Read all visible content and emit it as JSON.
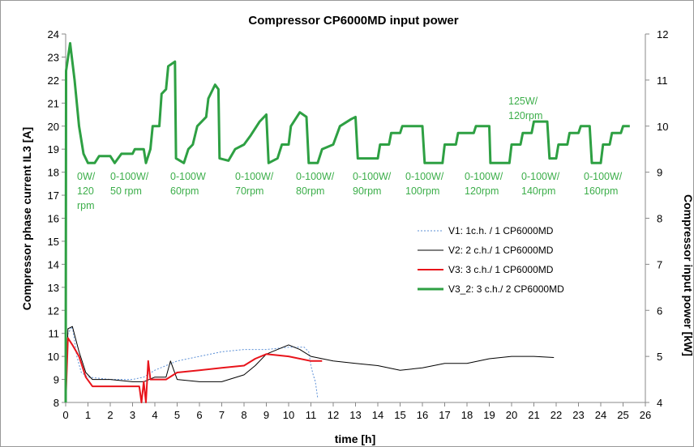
{
  "chart_data": {
    "type": "line",
    "title": "Compressor  CP6000MD input power",
    "xlabel": "time [h]",
    "ylabel": "Compressor phase current IL3 [A]",
    "y2label": "Compressor input power [kW]",
    "xlim": [
      0,
      26
    ],
    "xticks": [
      0,
      1,
      2,
      3,
      4,
      5,
      6,
      7,
      8,
      9,
      10,
      11,
      12,
      13,
      14,
      15,
      16,
      17,
      18,
      19,
      20,
      21,
      22,
      23,
      24,
      25,
      26
    ],
    "ylim": [
      8,
      24
    ],
    "yticks": [
      8,
      9,
      10,
      11,
      12,
      13,
      14,
      15,
      16,
      17,
      18,
      19,
      20,
      21,
      22,
      23,
      24
    ],
    "y2lim": [
      4,
      12
    ],
    "y2ticks": [
      4,
      5,
      6,
      7,
      8,
      9,
      10,
      11,
      12
    ],
    "grid": false,
    "legend": "right",
    "annotations": [
      [
        "0W/",
        "120",
        "rpm"
      ],
      [
        "0-100W/",
        "50 rpm"
      ],
      [
        "0-100W",
        "60rpm"
      ],
      [
        "0-100W/",
        "70rpm"
      ],
      [
        "0-100W/",
        "80rpm"
      ],
      [
        "0-100W/",
        "90rpm"
      ],
      [
        "0-100W/",
        "100rpm"
      ],
      [
        "0-100W/",
        "120rpm"
      ],
      [
        "0-100W/",
        "140rpm"
      ],
      [
        "0-100W/",
        "160rpm"
      ],
      [
        "125W/",
        "120rpm"
      ]
    ],
    "series": [
      {
        "name": "V1: 1c.h. / 1 CP6000MD",
        "color": "#5b8fd6",
        "dash": true,
        "width": 1,
        "x": [
          0,
          0.1,
          0.3,
          0.5,
          0.7,
          1,
          2,
          3,
          3.5,
          4,
          5,
          6,
          7,
          8,
          9,
          10,
          10.7,
          10.9,
          11,
          11.1,
          11.2,
          11.3
        ],
        "values": [
          8,
          11,
          11.3,
          10,
          9.3,
          9.1,
          9.0,
          9.0,
          9.1,
          9.4,
          9.8,
          10.0,
          10.2,
          10.3,
          10.3,
          10.4,
          10.4,
          10.2,
          9.6,
          9.2,
          8.9,
          8.2
        ]
      },
      {
        "name": "V2: 2 c.h./ 1 CP6000MD",
        "color": "#000000",
        "dash": false,
        "width": 1,
        "x": [
          0,
          0.1,
          0.3,
          0.6,
          0.9,
          1.2,
          2,
          3,
          3.5,
          4,
          4.5,
          4.7,
          5,
          6,
          7,
          8,
          8.5,
          9,
          9.5,
          10,
          10.5,
          11,
          12,
          13,
          14,
          15,
          16,
          17,
          18,
          19,
          20,
          21,
          21.9
        ],
        "values": [
          8,
          11.2,
          11.3,
          10.2,
          9.3,
          9.0,
          9.0,
          8.9,
          8.9,
          9.1,
          9.1,
          9.8,
          9.0,
          8.9,
          8.9,
          9.2,
          9.6,
          10.1,
          10.3,
          10.5,
          10.3,
          10.0,
          9.8,
          9.7,
          9.6,
          9.4,
          9.5,
          9.7,
          9.7,
          9.9,
          10.0,
          10.0,
          9.95
        ]
      },
      {
        "name": "V3: 3 c.h./ 1 CP6000MD",
        "color": "#e8141b",
        "dash": false,
        "width": 2,
        "x": [
          0,
          0.1,
          0.3,
          0.6,
          0.9,
          1.2,
          2,
          3,
          3.3,
          3.4,
          3.5,
          3.6,
          3.7,
          3.8,
          4.5,
          5,
          6,
          7,
          8,
          8.5,
          9,
          10,
          11,
          11.5
        ],
        "values": [
          8,
          10.8,
          10.5,
          10,
          9.1,
          8.7,
          8.7,
          8.7,
          8.7,
          8.0,
          8.9,
          8.0,
          9.8,
          9.0,
          9.0,
          9.3,
          9.4,
          9.5,
          9.6,
          9.9,
          10.1,
          10.0,
          9.8,
          9.8
        ]
      },
      {
        "name": "V3_2: 3 c.h./ 2 CP6000MD",
        "color": "#2ea043",
        "dash": false,
        "width": 3,
        "axis": "y2",
        "x": [
          0,
          0.02,
          0.2,
          0.4,
          0.6,
          0.8,
          1,
          1.3,
          1.5,
          2,
          2.2,
          2.5,
          3,
          3.1,
          3.5,
          3.6,
          3.8,
          3.9,
          4.2,
          4.3,
          4.5,
          4.6,
          4.9,
          4.95,
          5.3,
          5.5,
          5.7,
          5.9,
          6.3,
          6.4,
          6.7,
          6.85,
          6.9,
          7.3,
          7.6,
          8,
          8.3,
          8.7,
          9.0,
          9.1,
          9.5,
          9.7,
          10,
          10.1,
          10.5,
          10.8,
          10.9,
          11.3,
          11.5,
          12,
          12.3,
          12.8,
          13,
          13.1,
          14,
          14.1,
          14.5,
          14.6,
          15,
          15.1,
          16,
          16.1,
          16.9,
          17,
          17.5,
          17.6,
          18.3,
          18.4,
          19,
          19.05,
          19.9,
          20,
          20.4,
          20.5,
          20.9,
          21,
          21.6,
          21.7,
          22,
          22.1,
          22.5,
          22.6,
          23,
          23.1,
          23.5,
          23.6,
          24,
          24.1,
          24.4,
          24.5,
          24.9,
          25,
          25.3
        ],
        "values": [
          4,
          11.2,
          11.8,
          11,
          10,
          9.4,
          9.2,
          9.2,
          9.35,
          9.35,
          9.2,
          9.4,
          9.4,
          9.5,
          9.5,
          9.2,
          9.5,
          10,
          10,
          10.7,
          10.8,
          11.3,
          11.4,
          9.3,
          9.2,
          9.5,
          9.6,
          10,
          10.2,
          10.6,
          10.9,
          10.8,
          9.3,
          9.25,
          9.5,
          9.6,
          9.8,
          10.1,
          10.25,
          9.2,
          9.3,
          9.6,
          9.6,
          10,
          10.3,
          10.2,
          9.2,
          9.2,
          9.5,
          9.6,
          10,
          10.15,
          10.2,
          9.3,
          9.3,
          9.6,
          9.6,
          9.85,
          9.85,
          10,
          10,
          9.2,
          9.2,
          9.6,
          9.6,
          9.85,
          9.85,
          10,
          10,
          9.2,
          9.2,
          9.6,
          9.6,
          9.85,
          9.85,
          10.1,
          10.1,
          9.3,
          9.3,
          9.6,
          9.6,
          9.85,
          9.85,
          10,
          10,
          9.2,
          9.2,
          9.6,
          9.6,
          9.85,
          9.85,
          10,
          10
        ]
      }
    ]
  }
}
